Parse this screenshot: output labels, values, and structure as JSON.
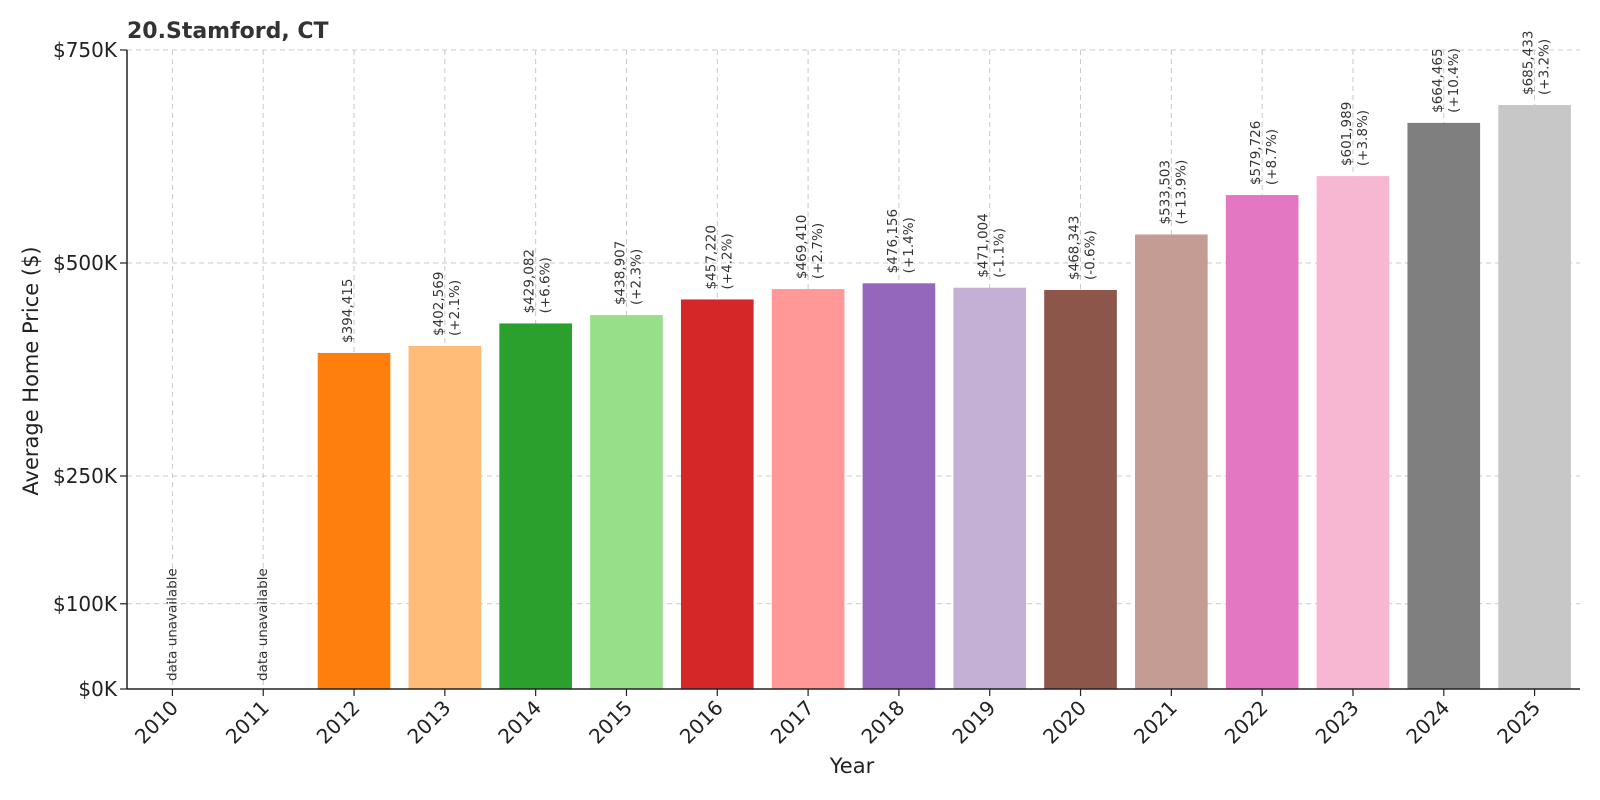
{
  "chart_data": {
    "type": "bar",
    "title": "20.Stamford, CT",
    "xlabel": "Year",
    "ylabel": "Average Home Price ($)",
    "ylim": [
      0,
      750000
    ],
    "yticks": [
      0,
      100000,
      250000,
      500000,
      750000
    ],
    "ytick_labels": [
      "$0K",
      "$100K",
      "$250K",
      "$500K",
      "$750K"
    ],
    "grid": true,
    "categories": [
      "2010",
      "2011",
      "2012",
      "2013",
      "2014",
      "2015",
      "2016",
      "2017",
      "2018",
      "2019",
      "2020",
      "2021",
      "2022",
      "2023",
      "2024",
      "2025"
    ],
    "values": [
      null,
      null,
      394415,
      402569,
      429082,
      438907,
      457220,
      469410,
      476156,
      471004,
      468343,
      533503,
      579726,
      601989,
      664465,
      685433
    ],
    "value_labels": [
      "",
      "",
      "$394,415",
      "$402,569",
      "$429,082",
      "$438,907",
      "$457,220",
      "$469,410",
      "$476,156",
      "$471,004",
      "$468,343",
      "$533,503",
      "$579,726",
      "$601,989",
      "$664,465",
      "$685,433"
    ],
    "change_labels": [
      "",
      "",
      "",
      "(+2.1%)",
      "(+6.6%)",
      "(+2.3%)",
      "(+4.2%)",
      "(+2.7%)",
      "(+1.4%)",
      "(-1.1%)",
      "(-0.6%)",
      "(+13.9%)",
      "(+8.7%)",
      "(+3.8%)",
      "(+10.4%)",
      "(+3.2%)"
    ],
    "missing_label": "data unavailable",
    "colors": [
      "#1f77b4",
      "#aec7e8",
      "#ff7f0e",
      "#ffbb78",
      "#2ca02c",
      "#98df8a",
      "#d62728",
      "#ff9896",
      "#9467bd",
      "#c5b0d5",
      "#8c564b",
      "#c49c94",
      "#e377c2",
      "#f7b6d2",
      "#7f7f7f",
      "#c7c7c7"
    ]
  }
}
